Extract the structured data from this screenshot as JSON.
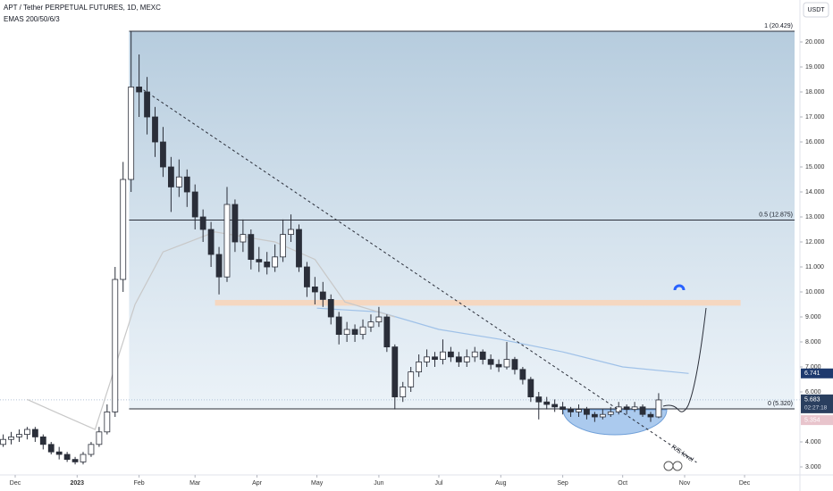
{
  "chart_data": {
    "type": "candlestick",
    "title": "APT / Tether PERPETUAL FUTURES, 1D, MEXC",
    "subtitle": "EMAS 200/50/6/3",
    "currency": "USDT",
    "xlim": [
      -7.6,
      392.7
    ],
    "ylim": [
      2.679,
      21.679
    ],
    "xticks": [
      {
        "value": 0,
        "label": "Dec"
      },
      {
        "value": 31,
        "label": "2023"
      },
      {
        "value": 62,
        "label": "Feb"
      },
      {
        "value": 90,
        "label": "Mar"
      },
      {
        "value": 121,
        "label": "Apr"
      },
      {
        "value": 151,
        "label": "May"
      },
      {
        "value": 182,
        "label": "Jun"
      },
      {
        "value": 212,
        "label": "Jul"
      },
      {
        "value": 243,
        "label": "Aug"
      },
      {
        "value": 274,
        "label": "Sep"
      },
      {
        "value": 304,
        "label": "Oct"
      },
      {
        "value": 335,
        "label": "Nov"
      },
      {
        "value": 365,
        "label": "Dec"
      }
    ],
    "yticks": [
      {
        "value": 3,
        "label": "3.000"
      },
      {
        "value": 4,
        "label": "4.000"
      },
      {
        "value": 6,
        "label": "6.000"
      },
      {
        "value": 7,
        "label": "7.000"
      },
      {
        "value": 8,
        "label": "8.000"
      },
      {
        "value": 9,
        "label": "9.000"
      },
      {
        "value": 10,
        "label": "10.000"
      },
      {
        "value": 11,
        "label": "11.000"
      },
      {
        "value": 12,
        "label": "12.000"
      },
      {
        "value": 13,
        "label": "13.000"
      },
      {
        "value": 14,
        "label": "14.000"
      },
      {
        "value": 15,
        "label": "15.000"
      },
      {
        "value": 16,
        "label": "16.000"
      },
      {
        "value": 17,
        "label": "17.000"
      },
      {
        "value": 18,
        "label": "18.000"
      },
      {
        "value": 19,
        "label": "19.000"
      },
      {
        "value": 20,
        "label": "20.000"
      }
    ],
    "up_color": "#ffffff",
    "down_color": "#2a2e39",
    "x": [
      -6,
      -2,
      2,
      6,
      10,
      14,
      18,
      22,
      26,
      30,
      34,
      38,
      42,
      46,
      50,
      54,
      58,
      62,
      66,
      70,
      74,
      78,
      82,
      86,
      90,
      94,
      98,
      102,
      106,
      110,
      114,
      118,
      122,
      126,
      130,
      134,
      138,
      142,
      146,
      150,
      154,
      158,
      162,
      166,
      170,
      174,
      178,
      182,
      186,
      190,
      194,
      198,
      202,
      206,
      210,
      214,
      218,
      222,
      226,
      230,
      234,
      238,
      242,
      246,
      250,
      254,
      258,
      262,
      266,
      270,
      274,
      278,
      282,
      286,
      290,
      294,
      298,
      302,
      306,
      310,
      314,
      318,
      322
    ],
    "ohlc": [
      [
        3.9,
        4.3,
        3.8,
        4.1
      ],
      [
        4.1,
        4.4,
        3.9,
        4.2
      ],
      [
        4.2,
        4.5,
        4.0,
        4.3
      ],
      [
        4.3,
        4.6,
        4.1,
        4.5
      ],
      [
        4.5,
        4.6,
        4.0,
        4.2
      ],
      [
        4.2,
        4.3,
        3.7,
        3.9
      ],
      [
        3.9,
        4.0,
        3.5,
        3.6
      ],
      [
        3.6,
        3.8,
        3.3,
        3.5
      ],
      [
        3.5,
        3.6,
        3.2,
        3.3
      ],
      [
        3.3,
        3.4,
        3.1,
        3.2
      ],
      [
        3.2,
        3.6,
        3.1,
        3.5
      ],
      [
        3.5,
        4.0,
        3.4,
        3.9
      ],
      [
        3.9,
        4.6,
        3.8,
        4.4
      ],
      [
        4.4,
        5.5,
        4.3,
        5.2
      ],
      [
        5.2,
        11.0,
        5.0,
        10.5
      ],
      [
        10.5,
        15.2,
        10.0,
        14.5
      ],
      [
        14.5,
        20.43,
        14.0,
        18.2
      ],
      [
        18.2,
        19.5,
        17.0,
        18.0
      ],
      [
        18.0,
        18.6,
        16.3,
        17.0
      ],
      [
        17.0,
        17.4,
        15.4,
        16.0
      ],
      [
        16.0,
        16.6,
        14.6,
        15.0
      ],
      [
        15.0,
        15.4,
        13.2,
        14.2
      ],
      [
        14.2,
        15.3,
        13.8,
        14.6
      ],
      [
        14.6,
        14.9,
        13.4,
        14.0
      ],
      [
        14.0,
        14.3,
        12.5,
        13.0
      ],
      [
        13.0,
        13.3,
        12.0,
        12.5
      ],
      [
        12.5,
        12.8,
        11.0,
        11.5
      ],
      [
        11.5,
        11.8,
        9.9,
        10.6
      ],
      [
        10.6,
        14.2,
        10.4,
        13.5
      ],
      [
        13.5,
        13.7,
        11.6,
        12.0
      ],
      [
        12.0,
        12.9,
        11.6,
        12.3
      ],
      [
        12.3,
        12.5,
        10.9,
        11.3
      ],
      [
        11.3,
        11.8,
        10.8,
        11.2
      ],
      [
        11.2,
        11.6,
        10.7,
        11.0
      ],
      [
        11.0,
        11.9,
        10.8,
        11.4
      ],
      [
        11.4,
        12.9,
        11.2,
        12.3
      ],
      [
        12.3,
        13.1,
        12.0,
        12.5
      ],
      [
        12.5,
        12.7,
        10.8,
        11.0
      ],
      [
        11.0,
        11.2,
        9.8,
        10.2
      ],
      [
        10.2,
        10.6,
        9.5,
        10.0
      ],
      [
        10.0,
        10.4,
        9.4,
        9.7
      ],
      [
        9.7,
        9.9,
        8.7,
        9.0
      ],
      [
        9.0,
        9.2,
        7.9,
        8.3
      ],
      [
        8.3,
        8.8,
        8.0,
        8.5
      ],
      [
        8.5,
        8.7,
        8.0,
        8.3
      ],
      [
        8.3,
        8.9,
        8.1,
        8.6
      ],
      [
        8.6,
        9.1,
        8.4,
        8.8
      ],
      [
        8.8,
        9.4,
        8.6,
        9.0
      ],
      [
        9.0,
        9.1,
        7.6,
        7.8
      ],
      [
        7.8,
        7.9,
        5.3,
        5.8
      ],
      [
        5.8,
        6.4,
        5.6,
        6.2
      ],
      [
        6.2,
        7.0,
        6.0,
        6.8
      ],
      [
        6.8,
        7.5,
        6.6,
        7.2
      ],
      [
        7.2,
        7.7,
        7.0,
        7.4
      ],
      [
        7.4,
        7.6,
        7.0,
        7.3
      ],
      [
        7.3,
        8.1,
        7.1,
        7.6
      ],
      [
        7.6,
        7.8,
        7.2,
        7.4
      ],
      [
        7.4,
        7.6,
        7.0,
        7.2
      ],
      [
        7.2,
        7.7,
        7.0,
        7.4
      ],
      [
        7.4,
        7.8,
        7.2,
        7.6
      ],
      [
        7.6,
        7.7,
        7.1,
        7.3
      ],
      [
        7.3,
        7.5,
        6.9,
        7.1
      ],
      [
        7.1,
        7.3,
        6.8,
        7.0
      ],
      [
        7.0,
        8.0,
        6.9,
        7.3
      ],
      [
        7.3,
        7.4,
        6.7,
        6.9
      ],
      [
        6.9,
        7.0,
        6.3,
        6.5
      ],
      [
        6.5,
        6.6,
        5.6,
        5.8
      ],
      [
        5.8,
        6.0,
        4.9,
        5.6
      ],
      [
        5.6,
        5.8,
        5.3,
        5.5
      ],
      [
        5.5,
        5.7,
        5.2,
        5.4
      ],
      [
        5.4,
        5.6,
        5.1,
        5.3
      ],
      [
        5.3,
        5.4,
        5.0,
        5.2
      ],
      [
        5.2,
        5.5,
        5.0,
        5.3
      ],
      [
        5.3,
        5.4,
        4.9,
        5.1
      ],
      [
        5.1,
        5.2,
        4.8,
        5.0
      ],
      [
        5.0,
        5.3,
        4.9,
        5.1
      ],
      [
        5.1,
        5.4,
        5.0,
        5.2
      ],
      [
        5.2,
        5.6,
        5.1,
        5.4
      ],
      [
        5.4,
        5.5,
        5.1,
        5.3
      ],
      [
        5.3,
        5.6,
        5.2,
        5.4
      ],
      [
        5.4,
        5.5,
        5.0,
        5.1
      ],
      [
        5.1,
        5.2,
        4.8,
        5.0
      ],
      [
        5.0,
        5.95,
        4.95,
        5.68
      ]
    ],
    "ema_lines": [
      {
        "color": "#9fc1e8",
        "x": [
          151,
          182,
          212,
          243,
          274,
          304,
          337
        ],
        "values": [
          9.35,
          9.2,
          8.5,
          8.1,
          7.6,
          7.0,
          6.741
        ]
      },
      {
        "color": "#c8c8c8",
        "x": [
          6,
          20,
          40,
          60,
          74,
          100,
          130,
          150,
          165,
          190
        ],
        "values": [
          5.7,
          5.2,
          4.5,
          9.5,
          11.6,
          12.4,
          12.0,
          11.3,
          9.6,
          9.0
        ]
      }
    ],
    "fib_levels": [
      {
        "value": 20.429,
        "label": "1 (20.429)"
      },
      {
        "value": 12.875,
        "label": "0.5 (12.875)"
      },
      {
        "value": 5.32,
        "label": "0 (5.320)"
      }
    ],
    "fib_start": 57,
    "zone": {
      "x": [
        100,
        363
      ],
      "values": [
        9.45,
        9.68
      ],
      "color": "#f5d7c0"
    },
    "trendline": {
      "x": [
        62,
        341
      ],
      "values": [
        18.2,
        3.18
      ],
      "label": "R/S level"
    },
    "last_price": 5.683,
    "countdown": "02:27:18",
    "ema_last": 6.741,
    "low_label": 5.354
  }
}
